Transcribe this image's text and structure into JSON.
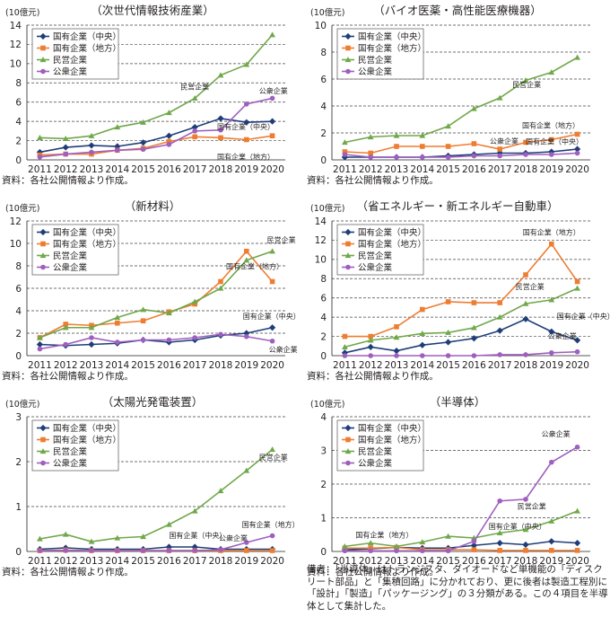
{
  "legend_labels": [
    "国有企業（中央）",
    "国有企業（地方）",
    "民営企業",
    "公衆企業"
  ],
  "colors": {
    "central": "#1f3e78",
    "local": "#ee7d31",
    "private": "#70a84a",
    "public": "#9e5fbf",
    "grid": "#444444",
    "axis": "#231f20"
  },
  "note_text": "備考：「半導体」はトランジスタ、ダイオードなど単機能の「ディスクリート部品」と「集積回路」に分かれており、更に後者は製造工程別に「設計」「製造」「パッケージング」の３分類がある。この４項目を半導体として集計した。",
  "chart_data": [
    {
      "type": "line",
      "id": "p1",
      "title": "（次世代情報技術産業）",
      "unit": "(10億元)",
      "x": [
        "2011",
        "2012",
        "2013",
        "2014",
        "2015",
        "2016",
        "2017",
        "2018",
        "2019",
        "2020"
      ],
      "ylim": [
        0,
        14
      ],
      "ystep": 2,
      "grid": true,
      "legend": "top-left",
      "series": [
        {
          "name": "国有企業（中央）",
          "key": "central",
          "values": [
            0.8,
            1.3,
            1.5,
            1.4,
            1.8,
            2.5,
            3.4,
            4.3,
            3.9,
            4.0
          ]
        },
        {
          "name": "国有企業（地方）",
          "key": "local",
          "values": [
            0.5,
            0.6,
            0.6,
            1.0,
            1.2,
            1.9,
            2.4,
            2.3,
            2.1,
            2.5
          ]
        },
        {
          "name": "民営企業",
          "key": "private",
          "values": [
            2.3,
            2.2,
            2.5,
            3.4,
            3.9,
            4.9,
            6.4,
            8.8,
            9.9,
            13.0
          ]
        },
        {
          "name": "公衆企業",
          "key": "public",
          "values": [
            0.3,
            0.6,
            0.8,
            1.0,
            1.1,
            1.6,
            3.0,
            3.1,
            5.8,
            6.4
          ]
        }
      ],
      "annotations": [
        {
          "text": "民営企業",
          "series": 2,
          "xi": 6,
          "pos": "above"
        },
        {
          "text": "公衆企業",
          "series": 3,
          "xi": 8,
          "pos": "aboveR"
        },
        {
          "text": "国有企業（中央）",
          "series": 0,
          "xi": 7,
          "pos": "belowR"
        },
        {
          "text": "国有企業（地方）",
          "series": 1,
          "xi": 7,
          "pos": "belowRR"
        }
      ],
      "source": "資料：各社公開情報より作成。"
    },
    {
      "type": "line",
      "id": "p2",
      "title": "（バイオ医薬・高性能医療機器）",
      "unit": "(10億元)",
      "x": [
        "2011",
        "2012",
        "2013",
        "2014",
        "2015",
        "2016",
        "2017",
        "2018",
        "2019",
        "2020"
      ],
      "ylim": [
        0,
        10
      ],
      "ystep": 2,
      "grid": true,
      "legend": "top-left",
      "series": [
        {
          "name": "国有企業（中央）",
          "key": "central",
          "values": [
            0.2,
            0.2,
            0.2,
            0.2,
            0.3,
            0.4,
            0.5,
            0.5,
            0.6,
            0.8
          ]
        },
        {
          "name": "国有企業（地方）",
          "key": "local",
          "values": [
            0.6,
            0.5,
            1.0,
            1.0,
            1.0,
            1.2,
            0.8,
            1.3,
            1.5,
            1.9
          ]
        },
        {
          "name": "民営企業",
          "key": "private",
          "values": [
            1.3,
            1.7,
            1.8,
            1.8,
            2.5,
            3.8,
            4.6,
            5.9,
            6.5,
            7.6
          ]
        },
        {
          "name": "公衆企業",
          "key": "public",
          "values": [
            0.4,
            0.2,
            0.2,
            0.2,
            0.2,
            0.3,
            0.3,
            0.4,
            0.4,
            0.5
          ]
        }
      ],
      "annotations": [
        {
          "text": "民営企業",
          "series": 2,
          "xi": 6,
          "pos": "aboveR"
        },
        {
          "text": "国有企業（地方）",
          "series": 1,
          "xi": 7,
          "pos": "above2"
        },
        {
          "text": "国有企業（中央）",
          "series": 0,
          "xi": 7,
          "pos": "aboveC"
        },
        {
          "text": "公衆企業",
          "series": 3,
          "xi": 7,
          "pos": "aboveL"
        }
      ],
      "source": "資料：各社公開情報より作成。"
    },
    {
      "type": "line",
      "id": "p3",
      "title": "（新材料）",
      "unit": "(10億元)",
      "x": [
        "2011",
        "2012",
        "2013",
        "2014",
        "2015",
        "2016",
        "2017",
        "2018",
        "2019",
        "2020"
      ],
      "ylim": [
        0,
        12
      ],
      "ystep": 2,
      "grid": true,
      "legend": "top-left",
      "series": [
        {
          "name": "国有企業（中央）",
          "key": "central",
          "values": [
            1.0,
            0.9,
            1.0,
            1.1,
            1.4,
            1.2,
            1.4,
            1.8,
            2.0,
            2.5
          ]
        },
        {
          "name": "国有企業（地方）",
          "key": "local",
          "values": [
            1.6,
            2.8,
            2.7,
            2.9,
            3.1,
            3.9,
            4.6,
            6.6,
            9.3,
            6.6
          ]
        },
        {
          "name": "民営企業",
          "key": "private",
          "values": [
            1.6,
            2.5,
            2.5,
            3.4,
            4.1,
            3.8,
            4.8,
            6.0,
            8.5,
            9.3
          ]
        },
        {
          "name": "公衆企業",
          "key": "public",
          "values": [
            0.6,
            1.0,
            1.6,
            1.2,
            1.4,
            1.4,
            1.6,
            1.9,
            1.7,
            1.3
          ]
        }
      ],
      "annotations": [
        {
          "text": "国有企業（地方）",
          "series": 1,
          "xi": 7,
          "pos": "aboveRR"
        },
        {
          "text": "民営企業",
          "series": 2,
          "xi": 9,
          "pos": "aboveRight"
        },
        {
          "text": "国有企業（中央）",
          "series": 0,
          "xi": 8,
          "pos": "above2"
        },
        {
          "text": "公衆企業",
          "series": 3,
          "xi": 9,
          "pos": "belowR"
        }
      ],
      "source": "資料：各社公開情報より作成。"
    },
    {
      "type": "line",
      "id": "p4",
      "title": "（省エネルギー・新エネルギー自動車）",
      "unit": "(10億元)",
      "x": [
        "2011",
        "2012",
        "2013",
        "2014",
        "2015",
        "2016",
        "2017",
        "2018",
        "2019",
        "2020"
      ],
      "ylim": [
        0,
        14
      ],
      "ystep": 2,
      "grid": true,
      "legend": "top-left",
      "series": [
        {
          "name": "国有企業（中央）",
          "key": "central",
          "values": [
            0.3,
            0.9,
            0.5,
            1.1,
            1.4,
            1.8,
            2.6,
            3.8,
            2.5,
            1.6
          ]
        },
        {
          "name": "国有企業（地方）",
          "key": "local",
          "values": [
            2.0,
            2.0,
            3.0,
            4.8,
            5.6,
            5.5,
            5.5,
            8.4,
            11.6,
            7.7
          ]
        },
        {
          "name": "民営企業",
          "key": "private",
          "values": [
            0.9,
            1.6,
            1.9,
            2.3,
            2.4,
            2.9,
            4.0,
            5.4,
            5.8,
            7.0
          ]
        },
        {
          "name": "公衆企業",
          "key": "public",
          "values": [
            0.0,
            0.0,
            0.0,
            0.0,
            0.0,
            0.0,
            0.1,
            0.1,
            0.3,
            0.4
          ]
        }
      ],
      "annotations": [
        {
          "text": "国有企業（地方）",
          "series": 1,
          "xi": 8,
          "pos": "above"
        },
        {
          "text": "民営企業",
          "series": 2,
          "xi": 8,
          "pos": "aboveL"
        },
        {
          "text": "国有企業（中央）",
          "series": 0,
          "xi": 8,
          "pos": "aboveRR"
        },
        {
          "text": "公衆企業",
          "series": 3,
          "xi": 8,
          "pos": "above2"
        }
      ],
      "source": "資料：各社公開情報より作成。"
    },
    {
      "type": "line",
      "id": "p5",
      "title": "（太陽光発電装置）",
      "unit": "(10億元)",
      "x": [
        "2011",
        "2012",
        "2013",
        "2014",
        "2015",
        "2016",
        "2017",
        "2018",
        "2019",
        "2020"
      ],
      "ylim": [
        0,
        3
      ],
      "ystep": 1,
      "grid": true,
      "legend": "top-left",
      "series": [
        {
          "name": "国有企業（中央）",
          "key": "central",
          "values": [
            0.05,
            0.08,
            0.05,
            0.05,
            0.05,
            0.1,
            0.1,
            0.05,
            0.05,
            0.05
          ]
        },
        {
          "name": "国有企業（地方）",
          "key": "local",
          "values": [
            0.02,
            0.03,
            0.02,
            0.02,
            0.02,
            0.02,
            0.02,
            0.02,
            0.02,
            0.02
          ]
        },
        {
          "name": "民営企業",
          "key": "private",
          "values": [
            0.28,
            0.38,
            0.22,
            0.3,
            0.33,
            0.6,
            0.9,
            1.35,
            1.8,
            2.27
          ]
        },
        {
          "name": "公衆企業",
          "key": "public",
          "values": [
            0.02,
            0.02,
            0.02,
            0.02,
            0.02,
            0.02,
            0.02,
            0.04,
            0.2,
            0.35
          ]
        }
      ],
      "annotations": [
        {
          "text": "民営企業",
          "series": 2,
          "xi": 8,
          "pos": "aboveR"
        },
        {
          "text": "国有企業（地方）",
          "series": 1,
          "xi": 9,
          "pos": "p5local"
        },
        {
          "text": "公衆企業",
          "series": 3,
          "xi": 7,
          "pos": "p5public"
        },
        {
          "text": "国有企業（中央）",
          "series": 0,
          "xi": 5,
          "pos": "aboveC"
        }
      ],
      "source": "資料：各社公開情報より作成。"
    },
    {
      "type": "line",
      "id": "p6",
      "title": "（半導体）",
      "unit": "(10億元)",
      "x": [
        "2011",
        "2012",
        "2013",
        "2014",
        "2015",
        "2016",
        "2017",
        "2018",
        "2019",
        "2020"
      ],
      "ylim": [
        0,
        4
      ],
      "ystep": 1,
      "grid": true,
      "legend": "top-left",
      "series": [
        {
          "name": "国有企業（中央）",
          "key": "central",
          "values": [
            0.05,
            0.08,
            0.12,
            0.1,
            0.1,
            0.18,
            0.25,
            0.2,
            0.3,
            0.25
          ]
        },
        {
          "name": "国有企業（地方）",
          "key": "local",
          "values": [
            0.1,
            0.1,
            0.12,
            0.05,
            0.05,
            0.05,
            0.03,
            0.03,
            0.03,
            0.03
          ]
        },
        {
          "name": "民営企業",
          "key": "private",
          "values": [
            0.15,
            0.25,
            0.15,
            0.28,
            0.45,
            0.4,
            0.55,
            0.65,
            0.9,
            1.2
          ]
        },
        {
          "name": "公衆企業",
          "key": "public",
          "values": [
            0.02,
            0.02,
            0.02,
            0.02,
            0.02,
            0.3,
            1.5,
            1.55,
            2.65,
            3.1
          ]
        }
      ],
      "annotations": [
        {
          "text": "公衆企業",
          "series": 3,
          "xi": 9,
          "pos": "aboveL"
        },
        {
          "text": "民営企業",
          "series": 2,
          "xi": 8,
          "pos": "p6private"
        },
        {
          "text": "国有企業（中央）",
          "series": 0,
          "xi": 8,
          "pos": "p6central"
        },
        {
          "text": "国有企業（地方）",
          "series": 1,
          "xi": 0,
          "pos": "p6local"
        }
      ],
      "source": "資料：各社公開情報より作成。"
    }
  ]
}
